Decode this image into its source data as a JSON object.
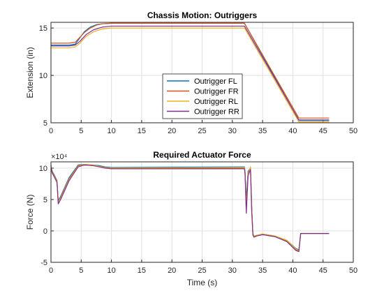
{
  "chart_data": [
    {
      "type": "line",
      "title": "Chassis Motion: Outriggers",
      "xlabel": "",
      "ylabel": "Extension (in)",
      "xlim": [
        0,
        50
      ],
      "ylim": [
        5,
        15.6
      ],
      "xticks": [
        "0",
        "5",
        "10",
        "15",
        "20",
        "25",
        "30",
        "35",
        "40",
        "45",
        "50"
      ],
      "yticks": [
        "5",
        "10",
        "15"
      ],
      "ytick_values": [
        5,
        10,
        15
      ],
      "grid": true,
      "legend_position": "bottom-center",
      "series": [
        {
          "name": "Outrigger FL",
          "color": "#0072BD",
          "x": [
            0,
            3,
            4,
            4.6,
            5.5,
            6.5,
            7.5,
            8.5,
            10,
            32,
            41,
            46
          ],
          "y": [
            13.2,
            13.2,
            13.3,
            13.8,
            14.6,
            15.1,
            15.35,
            15.45,
            15.5,
            15.5,
            5.25,
            5.25
          ]
        },
        {
          "name": "Outrigger FR",
          "color": "#D95319",
          "x": [
            0,
            3,
            4,
            4.6,
            5.5,
            6.5,
            7.5,
            8.5,
            10,
            32,
            41,
            46
          ],
          "y": [
            13.4,
            13.4,
            13.5,
            13.9,
            14.5,
            15.0,
            15.3,
            15.45,
            15.5,
            15.5,
            5.5,
            5.5
          ]
        },
        {
          "name": "Outrigger RL",
          "color": "#EDB120",
          "x": [
            0,
            3,
            4,
            4.8,
            5.8,
            7,
            8.5,
            10,
            32,
            41,
            46
          ],
          "y": [
            12.9,
            12.9,
            13.0,
            13.4,
            14.1,
            14.6,
            14.9,
            15.0,
            15.0,
            5.1,
            5.1
          ]
        },
        {
          "name": "Outrigger RR",
          "color": "#7E2F8E",
          "x": [
            0,
            3,
            4,
            4.8,
            5.8,
            7,
            8.5,
            10,
            32,
            41,
            46
          ],
          "y": [
            13.1,
            13.1,
            13.2,
            13.6,
            14.3,
            14.8,
            15.1,
            15.2,
            15.2,
            5.3,
            5.3
          ]
        }
      ]
    },
    {
      "type": "line",
      "title": "Required Actuator Force",
      "xlabel": "Time (s)",
      "ylabel": "Force (N)",
      "exponent_label": "×10⁴",
      "xlim": [
        0,
        50
      ],
      "ylim": [
        -5,
        11
      ],
      "xticks": [
        "0",
        "5",
        "10",
        "15",
        "20",
        "25",
        "30",
        "35",
        "40",
        "45",
        "50"
      ],
      "yticks": [
        "-5",
        "0",
        "5",
        "10"
      ],
      "ytick_values": [
        -5,
        0,
        5,
        10
      ],
      "grid": true,
      "series": [
        {
          "name": "Outrigger FL",
          "color": "#0072BD",
          "x": [
            0,
            0.2,
            0.5,
            1.0,
            1.2,
            1.6,
            3,
            4.5,
            5.5,
            7,
            8,
            9,
            10,
            32,
            32.1,
            32.3,
            32.6,
            33,
            33.2,
            33.4,
            33.6,
            34,
            35,
            37,
            39,
            40.5,
            41,
            41.3,
            46
          ],
          "y": [
            10.5,
            9.5,
            9.0,
            8.0,
            4.8,
            5.5,
            8.5,
            10.5,
            10.6,
            10.5,
            10.4,
            10.2,
            10.1,
            10.2,
            9.5,
            5.0,
            9.5,
            10.0,
            4.0,
            -0.5,
            -0.8,
            -0.7,
            -0.5,
            -0.8,
            -1.5,
            -2.8,
            -3.0,
            -0.4,
            -0.4
          ]
        },
        {
          "name": "Outrigger FR",
          "color": "#D95319",
          "x": [
            0,
            0.2,
            0.5,
            1.0,
            1.2,
            1.6,
            3,
            4.5,
            5.5,
            7,
            8,
            9,
            10,
            32,
            32.1,
            32.3,
            32.6,
            33,
            33.2,
            33.4,
            33.6,
            34,
            35,
            37,
            39,
            40.5,
            41,
            41.3,
            46
          ],
          "y": [
            10.3,
            9.4,
            8.9,
            7.9,
            4.5,
            5.3,
            8.3,
            10.4,
            10.5,
            10.4,
            10.3,
            10.1,
            10.0,
            10.0,
            9.3,
            4.0,
            9.2,
            9.9,
            3.5,
            -0.6,
            -0.9,
            -0.8,
            -0.6,
            -0.9,
            -1.6,
            -3.0,
            -3.2,
            -0.4,
            -0.4
          ]
        },
        {
          "name": "Outrigger RL",
          "color": "#EDB120",
          "x": [
            0,
            0.2,
            0.5,
            1.0,
            1.2,
            1.6,
            3,
            4.5,
            5.5,
            7,
            8,
            9,
            10,
            32,
            32.1,
            32.3,
            32.6,
            33,
            33.2,
            33.4,
            33.6,
            34,
            35,
            37,
            39,
            40.5,
            41,
            41.3,
            46
          ],
          "y": [
            10.4,
            9.3,
            8.8,
            7.8,
            4.6,
            5.2,
            8.2,
            10.3,
            10.6,
            10.5,
            10.3,
            10.1,
            10.0,
            10.1,
            9.4,
            3.5,
            9.0,
            10.2,
            3.8,
            -0.6,
            -0.8,
            -0.7,
            -0.5,
            -0.8,
            -1.5,
            -2.9,
            -3.1,
            -0.4,
            -0.4
          ]
        },
        {
          "name": "Outrigger RR",
          "color": "#7E2F8E",
          "x": [
            0,
            0.2,
            0.5,
            1.0,
            1.2,
            1.6,
            3,
            4.5,
            5.5,
            7,
            8,
            9,
            10,
            32,
            32.1,
            32.3,
            32.6,
            33,
            33.2,
            33.4,
            33.6,
            34,
            35,
            37,
            39,
            40.5,
            41,
            41.3,
            46
          ],
          "y": [
            10.2,
            9.2,
            8.7,
            7.7,
            4.3,
            5.0,
            8.0,
            10.2,
            10.5,
            10.4,
            10.2,
            10.0,
            9.9,
            9.9,
            9.0,
            2.8,
            8.8,
            9.8,
            3.0,
            -0.7,
            -1.0,
            -0.8,
            -0.6,
            -0.9,
            -1.7,
            -3.1,
            -3.3,
            -0.4,
            -0.4
          ]
        }
      ]
    }
  ]
}
